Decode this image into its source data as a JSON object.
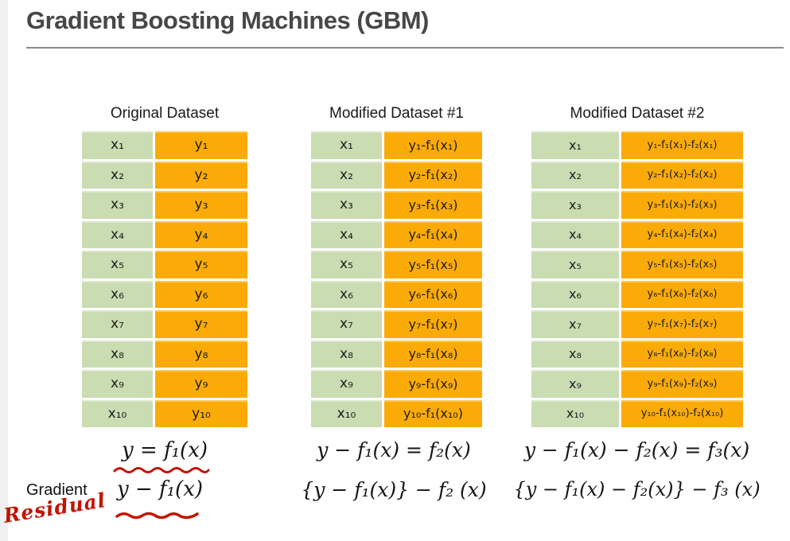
{
  "title": "Gradient Boosting Machines (GBM)",
  "colors": {
    "title_text": "#474747",
    "cell_green": "#c9dcb2",
    "cell_orange": "#fbab07",
    "annotation_red": "#c31400",
    "divider_gray": "#8a8a8a"
  },
  "tables": [
    {
      "title": "Original Dataset",
      "rows": [
        {
          "x": "x₁",
          "y": "y₁"
        },
        {
          "x": "x₂",
          "y": "y₂"
        },
        {
          "x": "x₃",
          "y": "y₃"
        },
        {
          "x": "x₄",
          "y": "y₄"
        },
        {
          "x": "x₅",
          "y": "y₅"
        },
        {
          "x": "x₆",
          "y": "y₆"
        },
        {
          "x": "x₇",
          "y": "y₇"
        },
        {
          "x": "x₈",
          "y": "y₈"
        },
        {
          "x": "x₉",
          "y": "y₉"
        },
        {
          "x": "x₁₀",
          "y": "y₁₀"
        }
      ]
    },
    {
      "title": "Modified Dataset #1",
      "rows": [
        {
          "x": "x₁",
          "y": "y₁-f₁(x₁)"
        },
        {
          "x": "x₂",
          "y": "y₂-f₁(x₂)"
        },
        {
          "x": "x₃",
          "y": "y₃-f₁(x₃)"
        },
        {
          "x": "x₄",
          "y": "y₄-f₁(x₄)"
        },
        {
          "x": "x₅",
          "y": "y₅-f₁(x₅)"
        },
        {
          "x": "x₆",
          "y": "y₆-f₁(x₆)"
        },
        {
          "x": "x₇",
          "y": "y₇-f₁(x₇)"
        },
        {
          "x": "x₈",
          "y": "y₈-f₁(x₈)"
        },
        {
          "x": "x₉",
          "y": "y₉-f₁(x₉)"
        },
        {
          "x": "x₁₀",
          "y": "y₁₀-f₁(x₁₀)"
        }
      ]
    },
    {
      "title": "Modified Dataset #2",
      "rows": [
        {
          "x": "x₁",
          "y": "y₁-f₁(x₁)-f₂(x₁)"
        },
        {
          "x": "x₂",
          "y": "y₂-f₁(x₂)-f₂(x₂)"
        },
        {
          "x": "x₃",
          "y": "y₃-f₁(x₃)-f₂(x₃)"
        },
        {
          "x": "x₄",
          "y": "y₄-f₁(x₄)-f₂(x₄)"
        },
        {
          "x": "x₅",
          "y": "y₅-f₁(x₅)-f₂(x₅)"
        },
        {
          "x": "x₆",
          "y": "y₆-f₁(x₆)-f₂(x₆)"
        },
        {
          "x": "x₇",
          "y": "y₇-f₁(x₇)-f₂(x₇)"
        },
        {
          "x": "x₈",
          "y": "y₈-f₁(x₈)-f₂(x₈)"
        },
        {
          "x": "x₉",
          "y": "y₉-f₁(x₉)-f₂(x₉)"
        },
        {
          "x": "x₁₀",
          "y": "y₁₀-f₁(x₁₀)-f₂(x₁₀)"
        }
      ]
    }
  ],
  "equations": {
    "col1_line1": "y = f₁(x)",
    "col1_line2": "y − f₁(x)",
    "col2_line1": "y − f₁(x) = f₂(x)",
    "col2_line2": "{y − f₁(x)} − f₂ (x)",
    "col3_line1": "y − f₁(x) − f₂(x) = f₃(x)",
    "col3_line2": "{y − f₁(x) − f₂(x)} − f₃ (x)"
  },
  "annotations": {
    "gradient_label": "Gradient",
    "residual_label": "Residual"
  }
}
